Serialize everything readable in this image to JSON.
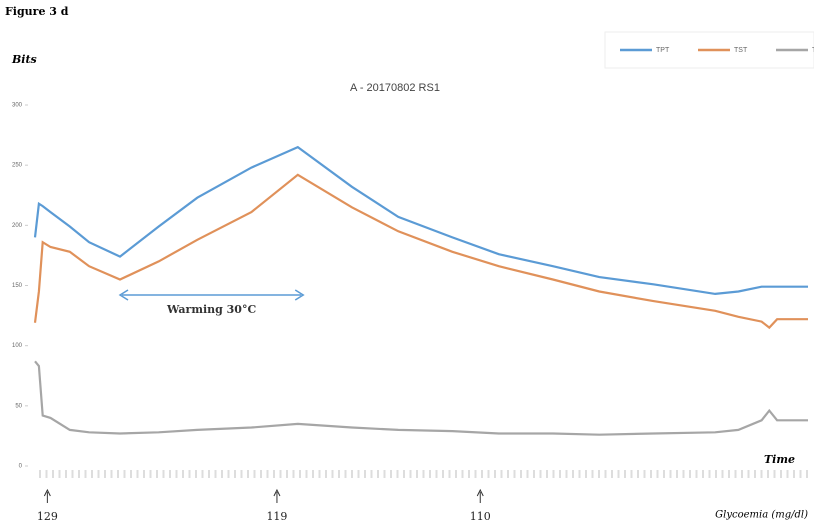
{
  "chart_data": {
    "type": "line",
    "figure_label": "Figure 3 d",
    "title": "A - 20170802 RS1",
    "y_label": "Bits",
    "x_label": "Time",
    "xlim": [
      0,
      100
    ],
    "ylim": [
      0,
      300
    ],
    "yticks": [
      0,
      50,
      100,
      150,
      200,
      250,
      300
    ],
    "x": [
      0,
      0.5,
      1,
      2,
      4.5,
      7,
      11,
      16,
      21,
      28,
      34,
      41,
      47,
      54,
      60,
      67,
      73,
      80,
      88,
      91,
      94,
      95,
      96,
      100
    ],
    "series": [
      {
        "name": "TPT",
        "color": "#5b9bd5",
        "values": [
          190,
          218,
          216,
          211,
          199,
          186,
          174,
          199,
          223,
          248,
          265,
          232,
          207,
          190,
          176,
          166,
          157,
          151,
          143,
          145,
          149,
          149,
          149,
          149
        ]
      },
      {
        "name": "TST",
        "color": "#e0915a",
        "values": [
          119,
          145,
          186,
          182,
          178,
          166,
          155,
          170,
          188,
          211,
          242,
          215,
          195,
          178,
          166,
          155,
          145,
          137,
          129,
          124,
          120,
          115,
          122,
          122
        ]
      },
      {
        "name": "TDT",
        "color": "#a6a6a6",
        "values": [
          87,
          83,
          42,
          40,
          30,
          28,
          27,
          28,
          30,
          32,
          35,
          32,
          30,
          29,
          27,
          27,
          26,
          27,
          28,
          30,
          38,
          46,
          38,
          38
        ]
      }
    ],
    "annotation": {
      "text": "Warming 30°C",
      "x": [
        11,
        34.7
      ]
    },
    "glycoemia": {
      "label": "Glycoemia (mg/dl)",
      "markers": [
        {
          "x": 1.6,
          "value": 129
        },
        {
          "x": 31.3,
          "value": 119
        },
        {
          "x": 57.6,
          "value": 110
        }
      ]
    }
  }
}
